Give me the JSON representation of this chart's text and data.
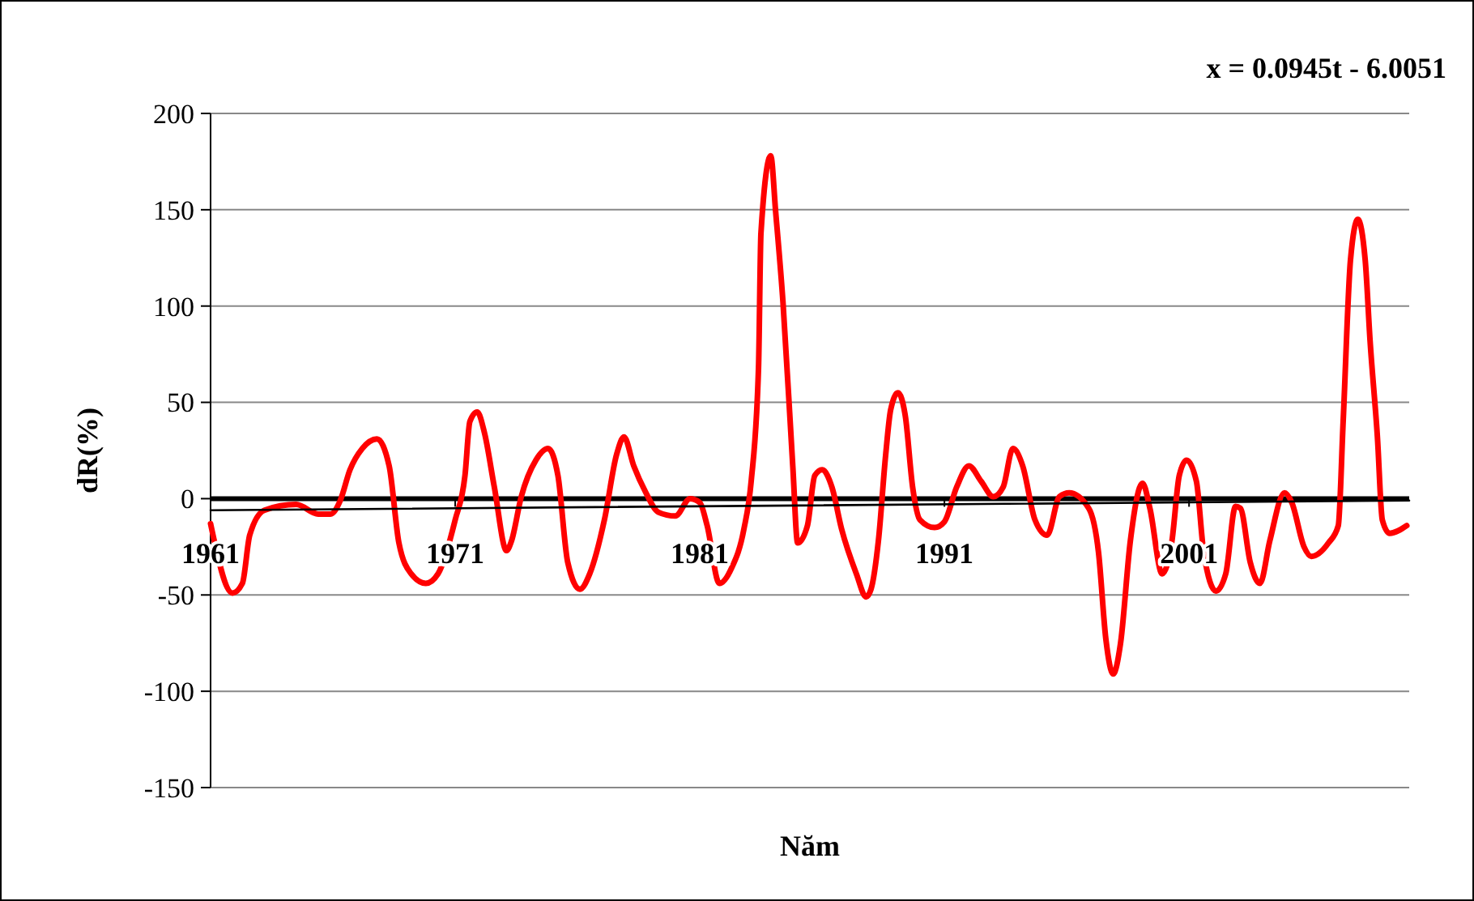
{
  "chart_data": {
    "type": "line",
    "xlabel": "Năm",
    "ylabel": "dR(%)",
    "annotations": [
      "x = 0.0945t - 6.0051"
    ],
    "xlim": [
      1961,
      2010
    ],
    "xticks": [
      1961,
      1971,
      1981,
      1991,
      2001
    ],
    "ylim": [
      -150,
      200
    ],
    "yticks": [
      -150,
      -100,
      -50,
      0,
      50,
      100,
      150,
      200
    ],
    "grid": "y",
    "series": [
      {
        "color": "#ff0000",
        "x": [
          1961.0,
          1961.9,
          1962.3,
          1962.6,
          1963.2,
          1964.5,
          1965.4,
          1965.9,
          1966.3,
          1966.7,
          1967.2,
          1967.8,
          1968.3,
          1968.7,
          1969.2,
          1969.8,
          1970.3,
          1971.0,
          1971.4,
          1971.6,
          1971.9,
          1972.2,
          1972.6,
          1973.1,
          1973.3,
          1973.7,
          1974.3,
          1974.8,
          1975.2,
          1975.6,
          1976.1,
          1976.5,
          1977.1,
          1977.6,
          1977.9,
          1978.3,
          1978.8,
          1979.3,
          1980.0,
          1980.6,
          1981.0,
          1981.3,
          1981.8,
          1982.3,
          1982.8,
          1983.1,
          1983.4,
          1983.5,
          1983.9,
          1984.1,
          1984.4,
          1984.8,
          1985.0,
          1985.4,
          1985.7,
          1986.0,
          1986.4,
          1986.8,
          1987.4,
          1987.8,
          1988.0,
          1988.3,
          1988.6,
          1988.8,
          1989.1,
          1989.4,
          1989.7,
          1990.0,
          1990.6,
          1991.0,
          1991.5,
          1992.0,
          1992.5,
          1993.0,
          1993.4,
          1993.8,
          1994.2,
          1994.7,
          1995.2,
          1995.7,
          1996.1,
          1996.9,
          1997.3,
          1997.6,
          1997.9,
          1998.2,
          1998.6,
          1999.1,
          1999.4,
          1999.9,
          2000.3,
          2000.6,
          2000.9,
          2001.3,
          2001.6,
          2002.1,
          2002.5,
          2002.9,
          2003.1,
          2003.5,
          2003.9,
          2004.3,
          2004.9,
          2005.2,
          2005.7,
          2006.0,
          2006.7,
          2007.1,
          2007.3,
          2007.6,
          2007.9,
          2008.2,
          2008.4,
          2008.7,
          2008.9,
          2009.2,
          2009.9
        ],
        "values": [
          -13,
          -49,
          -44,
          -19,
          -6,
          -3,
          -8,
          -8,
          -1,
          15,
          26,
          31,
          17,
          -23,
          -39,
          -44,
          -39,
          -11,
          12,
          40,
          45,
          34,
          6,
          -27,
          -22,
          1,
          20,
          26,
          12,
          -33,
          -47,
          -39,
          -11,
          23,
          32,
          17,
          3,
          -7,
          -9,
          0,
          -2,
          -14,
          -44,
          -36,
          -16,
          9,
          68,
          138,
          178,
          149,
          102,
          17,
          -23,
          -14,
          12,
          15,
          6,
          -16,
          -39,
          -51,
          -47,
          -22,
          23,
          46,
          55,
          43,
          6,
          -11,
          -15,
          -12,
          6,
          17,
          9,
          1,
          6,
          26,
          17,
          -11,
          -19,
          1,
          3,
          -5,
          -28,
          -73,
          -91,
          -75,
          -22,
          8,
          -5,
          -39,
          -22,
          12,
          20,
          9,
          -28,
          -48,
          -39,
          -4,
          -5,
          -33,
          -44,
          -22,
          3,
          -2,
          -25,
          -30,
          -23,
          -14,
          40,
          124,
          145,
          124,
          82,
          32,
          -11,
          -18,
          -14
        ]
      },
      {
        "color": "#000000",
        "x": [
          1961,
          2010
        ],
        "values": [
          -6,
          -1
        ]
      }
    ]
  }
}
